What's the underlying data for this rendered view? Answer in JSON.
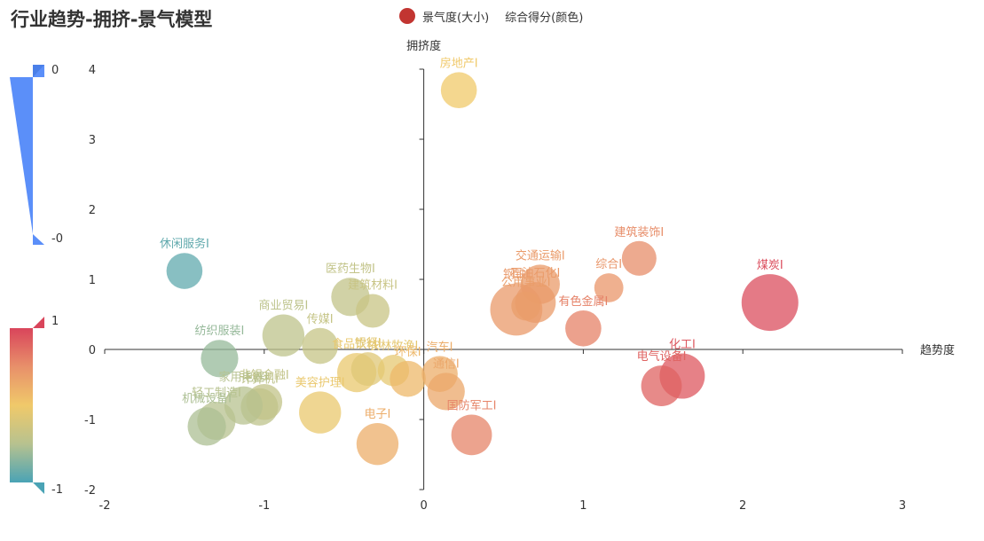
{
  "chart_data": {
    "type": "scatter",
    "title": "行业趋势-拥挤-景气模型",
    "legend": [
      "景气度(大小)",
      "综合得分(颜色)"
    ],
    "xlabel": "趋势度",
    "ylabel": "拥挤度",
    "xlim": [
      -2,
      3
    ],
    "ylim": [
      -2,
      4
    ],
    "x_ticks": [
      "-2",
      "-1",
      "0",
      "1",
      "2",
      "3"
    ],
    "y_ticks": [
      "-2",
      "-1",
      "0",
      "1",
      "2",
      "3",
      "4"
    ],
    "visual_maps": [
      {
        "dimension": "景气度(大小)",
        "max_label": "0",
        "min_label": "-0",
        "color": "#5b8ff9"
      },
      {
        "dimension": "综合得分(颜色)",
        "max_label": "1",
        "min_label": "-1",
        "colors": [
          "#4aa3b5",
          "#f0c96a",
          "#d9455b"
        ]
      }
    ],
    "points": [
      {
        "name": "房地产I",
        "x": 0.22,
        "y": 3.7,
        "size": 0.55,
        "score": 0.0
      },
      {
        "name": "休闲服务I",
        "x": -1.5,
        "y": 1.12,
        "size": 0.55,
        "score": -0.9
      },
      {
        "name": "煤炭I",
        "x": 2.17,
        "y": 0.67,
        "size": 1.0,
        "score": 0.95
      },
      {
        "name": "建筑装饰I",
        "x": 1.35,
        "y": 1.3,
        "size": 0.52,
        "score": 0.52
      },
      {
        "name": "综合I",
        "x": 1.16,
        "y": 0.88,
        "size": 0.4,
        "score": 0.45
      },
      {
        "name": "交通运输I",
        "x": 0.73,
        "y": 0.93,
        "size": 0.62,
        "score": 0.4
      },
      {
        "name": "钢铁I",
        "x": 0.58,
        "y": 0.57,
        "size": 0.9,
        "score": 0.42
      },
      {
        "name": "石油石化I",
        "x": 0.7,
        "y": 0.67,
        "size": 0.65,
        "score": 0.4
      },
      {
        "name": "公用事业I",
        "x": 0.64,
        "y": 0.62,
        "size": 0.4,
        "score": 0.38
      },
      {
        "name": "有色金属I",
        "x": 1.0,
        "y": 0.3,
        "size": 0.55,
        "score": 0.6
      },
      {
        "name": "化工I",
        "x": 1.62,
        "y": -0.38,
        "size": 0.75,
        "score": 0.88
      },
      {
        "name": "电气设备I",
        "x": 1.49,
        "y": -0.52,
        "size": 0.65,
        "score": 0.8
      },
      {
        "name": "国防军工I",
        "x": 0.3,
        "y": -1.22,
        "size": 0.65,
        "score": 0.58
      },
      {
        "name": "医药生物I",
        "x": -0.46,
        "y": 0.75,
        "size": 0.6,
        "score": -0.4
      },
      {
        "name": "建筑材料I",
        "x": -0.32,
        "y": 0.55,
        "size": 0.5,
        "score": -0.35
      },
      {
        "name": "商业贸易I",
        "x": -0.88,
        "y": 0.2,
        "size": 0.68,
        "score": -0.45
      },
      {
        "name": "传媒I",
        "x": -0.65,
        "y": 0.05,
        "size": 0.55,
        "score": -0.38
      },
      {
        "name": "纺织服装I",
        "x": -1.28,
        "y": -0.13,
        "size": 0.58,
        "score": -0.65
      },
      {
        "name": "食品饮料I",
        "x": -0.42,
        "y": -0.33,
        "size": 0.62,
        "score": -0.05
      },
      {
        "name": "银行I",
        "x": -0.35,
        "y": -0.28,
        "size": 0.5,
        "score": -0.15
      },
      {
        "name": "农林牧渔I",
        "x": -0.19,
        "y": -0.3,
        "size": 0.45,
        "score": -0.1
      },
      {
        "name": "环保I",
        "x": -0.1,
        "y": -0.42,
        "size": 0.55,
        "score": 0.15
      },
      {
        "name": "汽车I",
        "x": 0.1,
        "y": -0.35,
        "size": 0.55,
        "score": 0.25
      },
      {
        "name": "通信I",
        "x": 0.14,
        "y": -0.6,
        "size": 0.58,
        "score": 0.3
      },
      {
        "name": "美容护理I",
        "x": -0.65,
        "y": -0.9,
        "size": 0.68,
        "score": -0.05
      },
      {
        "name": "电子I",
        "x": -0.29,
        "y": -1.35,
        "size": 0.68,
        "score": 0.25
      },
      {
        "name": "计算机I",
        "x": -1.03,
        "y": -0.82,
        "size": 0.58,
        "score": -0.45
      },
      {
        "name": "非银金融I",
        "x": -1.0,
        "y": -0.75,
        "size": 0.55,
        "score": -0.4
      },
      {
        "name": "家用电器I",
        "x": -1.13,
        "y": -0.8,
        "size": 0.6,
        "score": -0.5
      },
      {
        "name": "轻工制造I",
        "x": -1.3,
        "y": -1.02,
        "size": 0.6,
        "score": -0.5
      },
      {
        "name": "机械设备I",
        "x": -1.36,
        "y": -1.1,
        "size": 0.6,
        "score": -0.55
      }
    ]
  }
}
